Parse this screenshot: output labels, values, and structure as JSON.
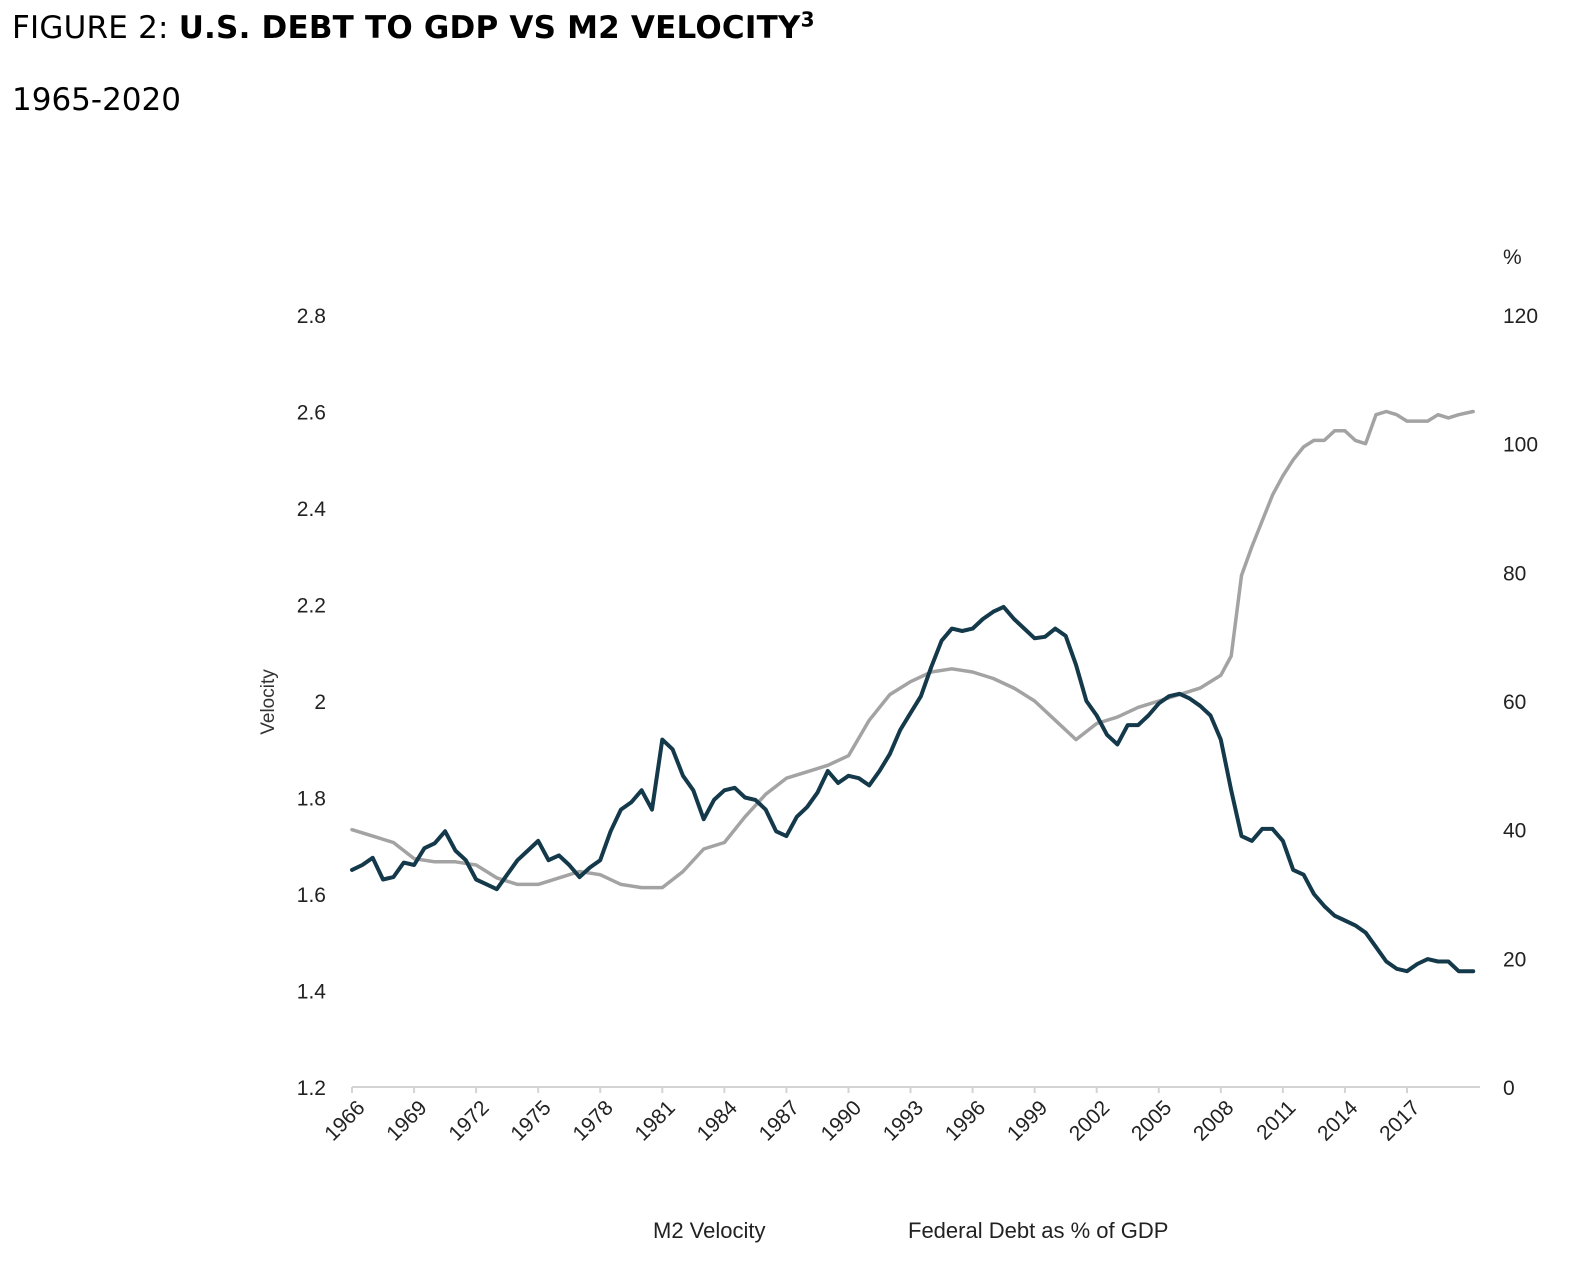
{
  "figure": {
    "prefix": "FIGURE 2: ",
    "title": "U.S. DEBT TO GDP VS M2 VELOCITY",
    "footnote_mark": "3",
    "subtitle": "1965-2020"
  },
  "chart_data": {
    "type": "line",
    "title": "U.S. DEBT TO GDP VS M2 VELOCITY",
    "subtitle": "1965-2020",
    "xlabel": "",
    "ylabel": "Velocity",
    "y2label": "%",
    "x_range": [
      1966,
      2020.5
    ],
    "x_ticks": [
      "1966",
      "1969",
      "1972",
      "1975",
      "1978",
      "1981",
      "1984",
      "1987",
      "1990",
      "1993",
      "1996",
      "1999",
      "2002",
      "2005",
      "2008",
      "2011",
      "2014",
      "2017"
    ],
    "y_left": {
      "range": [
        1.2,
        2.8
      ],
      "ticks": [
        "1.2",
        "1.4",
        "1.6",
        "1.8",
        "2",
        "2.2",
        "2.4",
        "2.6",
        "2.8"
      ]
    },
    "y_right": {
      "range": [
        0,
        120
      ],
      "ticks": [
        "0",
        "20",
        "40",
        "60",
        "80",
        "100",
        "120"
      ]
    },
    "grid": false,
    "legend_position": "bottom",
    "series": [
      {
        "name": "M2 Velocity",
        "axis": "left",
        "color": "#13394a",
        "x": [
          1966,
          1966.5,
          1967,
          1967.5,
          1968,
          1968.5,
          1969,
          1969.5,
          1970,
          1970.5,
          1971,
          1971.5,
          1972,
          1972.5,
          1973,
          1973.5,
          1974,
          1974.5,
          1975,
          1975.5,
          1976,
          1976.5,
          1977,
          1977.5,
          1978,
          1978.5,
          1979,
          1979.5,
          1980,
          1980.5,
          1981,
          1981.5,
          1982,
          1982.5,
          1983,
          1983.5,
          1984,
          1984.5,
          1985,
          1985.5,
          1986,
          1986.5,
          1987,
          1987.5,
          1988,
          1988.5,
          1989,
          1989.5,
          1990,
          1990.5,
          1991,
          1991.5,
          1992,
          1992.5,
          1993,
          1993.5,
          1994,
          1994.5,
          1995,
          1995.5,
          1996,
          1996.5,
          1997,
          1997.5,
          1998,
          1998.5,
          1999,
          1999.5,
          2000,
          2000.5,
          2001,
          2001.5,
          2002,
          2002.5,
          2003,
          2003.5,
          2004,
          2004.5,
          2005,
          2005.5,
          2006,
          2006.5,
          2007,
          2007.5,
          2008,
          2008.5,
          2009,
          2009.5,
          2010,
          2010.5,
          2011,
          2011.5,
          2012,
          2012.5,
          2013,
          2013.5,
          2014,
          2014.5,
          2015,
          2015.5,
          2016,
          2016.5,
          2017,
          2017.5,
          2018,
          2018.5,
          2019,
          2019.5,
          2020.2
        ],
        "values": [
          1.65,
          1.66,
          1.675,
          1.63,
          1.635,
          1.665,
          1.66,
          1.695,
          1.705,
          1.73,
          1.69,
          1.67,
          1.63,
          1.62,
          1.61,
          1.64,
          1.67,
          1.69,
          1.71,
          1.67,
          1.68,
          1.66,
          1.635,
          1.655,
          1.67,
          1.73,
          1.775,
          1.79,
          1.815,
          1.775,
          1.92,
          1.9,
          1.845,
          1.815,
          1.755,
          1.795,
          1.815,
          1.82,
          1.8,
          1.795,
          1.775,
          1.73,
          1.72,
          1.76,
          1.78,
          1.81,
          1.855,
          1.83,
          1.845,
          1.84,
          1.825,
          1.855,
          1.89,
          1.94,
          1.975,
          2.01,
          2.07,
          2.125,
          2.15,
          2.145,
          2.15,
          2.17,
          2.185,
          2.195,
          2.17,
          2.15,
          2.13,
          2.133,
          2.15,
          2.135,
          2.075,
          2.0,
          1.97,
          1.93,
          1.91,
          1.95,
          1.95,
          1.97,
          1.995,
          2.01,
          2.015,
          2.005,
          1.99,
          1.97,
          1.92,
          1.815,
          1.72,
          1.71,
          1.735,
          1.735,
          1.71,
          1.65,
          1.64,
          1.6,
          1.575,
          1.555,
          1.545,
          1.535,
          1.52,
          1.49,
          1.46,
          1.445,
          1.44,
          1.455,
          1.465,
          1.46,
          1.46,
          1.44,
          1.44
        ]
      },
      {
        "name": "Federal Debt as % of GDP",
        "axis": "right",
        "color": "#a3a3a3",
        "x": [
          1966,
          1967,
          1968,
          1969,
          1970,
          1971,
          1972,
          1973,
          1974,
          1975,
          1976,
          1977,
          1978,
          1979,
          1980,
          1981,
          1982,
          1983,
          1984,
          1985,
          1986,
          1987,
          1988,
          1989,
          1990,
          1991,
          1992,
          1993,
          1994,
          1995,
          1996,
          1997,
          1998,
          1999,
          2000,
          2001,
          2002,
          2003,
          2004,
          2005,
          2006,
          2007,
          2008,
          2008.5,
          2009,
          2009.5,
          2010,
          2010.5,
          2011,
          2011.5,
          2012,
          2012.5,
          2013,
          2013.5,
          2014,
          2014.5,
          2015,
          2015.5,
          2016,
          2016.5,
          2017,
          2017.5,
          2018,
          2018.5,
          2019,
          2019.5,
          2020.2
        ],
        "values": [
          40,
          39,
          38,
          35.5,
          35,
          35,
          34.5,
          32.5,
          31.5,
          31.5,
          32.5,
          33.5,
          33,
          31.5,
          31,
          31,
          33.5,
          37,
          38,
          42,
          45.5,
          48,
          49,
          50,
          51.5,
          57,
          61,
          63,
          64.5,
          65,
          64.5,
          63.5,
          62,
          60,
          57,
          54,
          56.5,
          57.5,
          59,
          60,
          61,
          62,
          64,
          67,
          79.5,
          84,
          88,
          92,
          95,
          97.5,
          99.5,
          100.5,
          100.5,
          102,
          102,
          100.5,
          100,
          104.5,
          105,
          104.5,
          103.5,
          103.5,
          103.5,
          104.5,
          104,
          104.5,
          105
        ]
      }
    ]
  }
}
